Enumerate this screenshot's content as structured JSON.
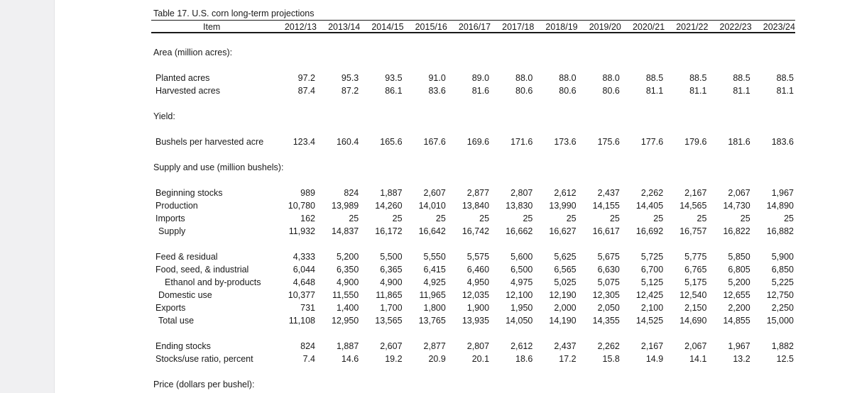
{
  "title": "Table 17.  U.S. corn long-term projections",
  "header": {
    "item": "Item",
    "years": [
      "2012/13",
      "2013/14",
      "2014/15",
      "2015/16",
      "2016/17",
      "2017/18",
      "2018/19",
      "2019/20",
      "2020/21",
      "2021/22",
      "2022/23",
      "2023/24"
    ]
  },
  "sections": [
    {
      "label": "Area (million acres):",
      "top": 67,
      "rows": [
        {
          "label": "Planted acres",
          "indent": 0,
          "values": [
            "97.2",
            "95.3",
            "93.5",
            "91.0",
            "89.0",
            "88.0",
            "88.0",
            "88.0",
            "88.5",
            "88.5",
            "88.5",
            "88.5"
          ]
        },
        {
          "label": "Harvested acres",
          "indent": 0,
          "values": [
            "87.4",
            "87.2",
            "86.1",
            "83.6",
            "81.6",
            "80.6",
            "80.6",
            "80.6",
            "81.1",
            "81.1",
            "81.1",
            "81.1"
          ]
        }
      ]
    },
    {
      "label": "Yield:",
      "rows": [
        {
          "label": "Bushels per harvested acre",
          "indent": 0,
          "values": [
            "123.4",
            "160.4",
            "165.6",
            "167.6",
            "169.6",
            "171.6",
            "173.6",
            "175.6",
            "177.6",
            "179.6",
            "181.6",
            "183.6"
          ]
        }
      ]
    },
    {
      "label": "Supply and use (million bushels):",
      "rows": [
        {
          "label": "Beginning stocks",
          "indent": 0,
          "values": [
            "989",
            "824",
            "1,887",
            "2,607",
            "2,877",
            "2,807",
            "2,612",
            "2,437",
            "2,262",
            "2,167",
            "2,067",
            "1,967"
          ]
        },
        {
          "label": "Production",
          "indent": 0,
          "values": [
            "10,780",
            "13,989",
            "14,260",
            "14,010",
            "13,840",
            "13,830",
            "13,990",
            "14,155",
            "14,405",
            "14,565",
            "14,730",
            "14,890"
          ]
        },
        {
          "label": "Imports",
          "indent": 0,
          "values": [
            "162",
            "25",
            "25",
            "25",
            "25",
            "25",
            "25",
            "25",
            "25",
            "25",
            "25",
            "25"
          ]
        },
        {
          "label": "Supply",
          "indent": 1,
          "values": [
            "11,932",
            "14,837",
            "16,172",
            "16,642",
            "16,742",
            "16,662",
            "16,627",
            "16,617",
            "16,692",
            "16,757",
            "16,822",
            "16,882"
          ]
        },
        {
          "gap": true
        },
        {
          "label": "Feed & residual",
          "indent": 0,
          "values": [
            "4,333",
            "5,200",
            "5,500",
            "5,550",
            "5,575",
            "5,600",
            "5,625",
            "5,675",
            "5,725",
            "5,775",
            "5,850",
            "5,900"
          ]
        },
        {
          "label": "Food, seed, & industrial",
          "indent": 0,
          "values": [
            "6,044",
            "6,350",
            "6,365",
            "6,415",
            "6,460",
            "6,500",
            "6,565",
            "6,630",
            "6,700",
            "6,765",
            "6,805",
            "6,850"
          ]
        },
        {
          "label": "Ethanol and by-products",
          "indent": 2,
          "values": [
            "4,648",
            "4,900",
            "4,900",
            "4,925",
            "4,950",
            "4,975",
            "5,025",
            "5,075",
            "5,125",
            "5,175",
            "5,200",
            "5,225"
          ]
        },
        {
          "label": "Domestic use",
          "indent": 1,
          "values": [
            "10,377",
            "11,550",
            "11,865",
            "11,965",
            "12,035",
            "12,100",
            "12,190",
            "12,305",
            "12,425",
            "12,540",
            "12,655",
            "12,750"
          ]
        },
        {
          "label": "Exports",
          "indent": 0,
          "values": [
            "731",
            "1,400",
            "1,700",
            "1,800",
            "1,900",
            "1,950",
            "2,000",
            "2,050",
            "2,100",
            "2,150",
            "2,200",
            "2,250"
          ]
        },
        {
          "label": "Total use",
          "indent": 1,
          "values": [
            "11,108",
            "12,950",
            "13,565",
            "13,765",
            "13,935",
            "14,050",
            "14,190",
            "14,355",
            "14,525",
            "14,690",
            "14,855",
            "15,000"
          ]
        },
        {
          "gap": true
        },
        {
          "label": "Ending stocks",
          "indent": 0,
          "values": [
            "824",
            "1,887",
            "2,607",
            "2,877",
            "2,807",
            "2,612",
            "2,437",
            "2,262",
            "2,167",
            "2,067",
            "1,967",
            "1,882"
          ]
        },
        {
          "label": "Stocks/use ratio, percent",
          "indent": 0,
          "values": [
            "7.4",
            "14.6",
            "19.2",
            "20.9",
            "20.1",
            "18.6",
            "17.2",
            "15.8",
            "14.9",
            "14.1",
            "13.2",
            "12.5"
          ]
        }
      ]
    },
    {
      "label": "Price (dollars per bushel):",
      "rows": []
    }
  ]
}
